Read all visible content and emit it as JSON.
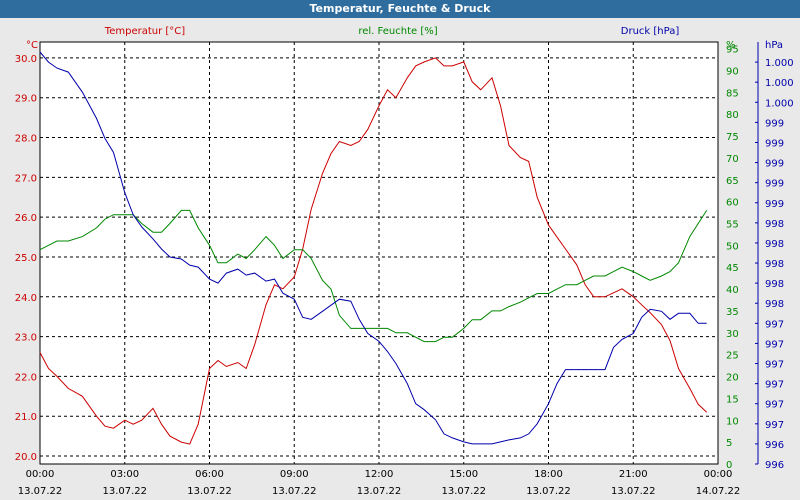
{
  "window": {
    "title": "Temperatur, Feuchte & Druck"
  },
  "chart_data": {
    "type": "line",
    "title": "Temperatur, Feuchte & Druck",
    "x_ticks": [
      {
        "t": 0,
        "time": "00:00",
        "date": "13.07.22"
      },
      {
        "t": 3,
        "time": "03:00",
        "date": "13.07.22"
      },
      {
        "t": 6,
        "time": "06:00",
        "date": "13.07.22"
      },
      {
        "t": 9,
        "time": "09:00",
        "date": "13.07.22"
      },
      {
        "t": 12,
        "time": "12:00",
        "date": "13.07.22"
      },
      {
        "t": 15,
        "time": "15:00",
        "date": "13.07.22"
      },
      {
        "t": 18,
        "time": "18:00",
        "date": "13.07.22"
      },
      {
        "t": 21,
        "time": "21:00",
        "date": "13.07.22"
      },
      {
        "t": 24,
        "time": "00:00",
        "date": "14.07.22"
      }
    ],
    "xlim": [
      0,
      24
    ],
    "grid": true,
    "axes": {
      "temperature": {
        "label": "Temperatur [°C]",
        "unit": "°C",
        "color": "#cc0000",
        "lim": [
          19.8,
          30.4
        ],
        "ticks": [
          "20.0",
          "21.0",
          "22.0",
          "23.0",
          "24.0",
          "25.0",
          "26.0",
          "27.0",
          "28.0",
          "29.0",
          "30.0"
        ]
      },
      "humidity": {
        "label": "rel. Feuchte [%]",
        "unit": "%",
        "color": "#008800",
        "lim": [
          0,
          96.5
        ],
        "ticks": [
          "0",
          "5",
          "10",
          "15",
          "20",
          "25",
          "30",
          "35",
          "40",
          "45",
          "50",
          "55",
          "60",
          "65",
          "70",
          "75",
          "80",
          "85",
          "90",
          "95"
        ]
      },
      "pressure": {
        "label": "Druck [hPa]",
        "unit": "hPa",
        "color": "#0000aa",
        "lim": [
          0,
          21
        ],
        "ticks": [
          "996",
          "996",
          "997",
          "997",
          "997",
          "997",
          "997",
          "997",
          "998",
          "998",
          "998",
          "998",
          "998",
          "999",
          "999",
          "999",
          "999",
          "999",
          "1.000",
          "1.000",
          "1.000"
        ]
      }
    },
    "series": [
      {
        "name": "Temperatur [°C]",
        "axis": "temperature",
        "color": "#cc0000",
        "x": [
          0,
          0.3,
          0.6,
          1,
          1.5,
          2,
          2.3,
          2.6,
          3,
          3.3,
          3.6,
          4,
          4.3,
          4.6,
          5,
          5.3,
          5.6,
          6,
          6.3,
          6.6,
          7,
          7.3,
          7.6,
          8,
          8.3,
          8.6,
          9,
          9.3,
          9.6,
          10,
          10.3,
          10.6,
          11,
          11.3,
          11.6,
          12,
          12.3,
          12.6,
          13,
          13.3,
          13.6,
          14,
          14.3,
          14.6,
          15,
          15.3,
          15.6,
          16,
          16.3,
          16.6,
          17,
          17.3,
          17.6,
          18,
          18.3,
          18.6,
          19,
          19.3,
          19.6,
          20,
          20.3,
          20.6,
          21,
          21.3,
          21.6,
          22,
          22.3,
          22.6,
          23,
          23.3,
          23.6
        ],
        "y": [
          22.6,
          22.2,
          22.0,
          21.7,
          21.5,
          21.0,
          20.75,
          20.7,
          20.9,
          20.8,
          20.9,
          21.2,
          20.8,
          20.5,
          20.35,
          20.3,
          20.8,
          22.2,
          22.4,
          22.25,
          22.35,
          22.2,
          22.8,
          23.8,
          24.3,
          24.2,
          24.5,
          25.2,
          26.2,
          27.1,
          27.6,
          27.9,
          27.8,
          27.9,
          28.2,
          28.8,
          29.2,
          29.0,
          29.5,
          29.8,
          29.9,
          30.0,
          29.8,
          29.8,
          29.9,
          29.4,
          29.2,
          29.5,
          28.8,
          27.8,
          27.5,
          27.4,
          26.5,
          25.8,
          25.5,
          25.2,
          24.8,
          24.3,
          24.0,
          24.0,
          24.1,
          24.2,
          24.0,
          23.8,
          23.6,
          23.3,
          22.9,
          22.2,
          21.7,
          21.3,
          21.1
        ]
      },
      {
        "name": "rel. Feuchte [%]",
        "axis": "humidity",
        "color": "#008800",
        "x": [
          0,
          0.3,
          0.6,
          1,
          1.5,
          2,
          2.3,
          2.6,
          3,
          3.3,
          3.6,
          4,
          4.3,
          4.6,
          5,
          5.3,
          5.6,
          6,
          6.3,
          6.6,
          7,
          7.3,
          7.6,
          8,
          8.3,
          8.6,
          9,
          9.3,
          9.6,
          10,
          10.3,
          10.6,
          11,
          11.3,
          11.6,
          12,
          12.3,
          12.6,
          13,
          13.3,
          13.6,
          14,
          14.3,
          14.6,
          15,
          15.3,
          15.6,
          16,
          16.3,
          16.6,
          17,
          17.3,
          17.6,
          18,
          18.3,
          18.6,
          19,
          19.3,
          19.6,
          20,
          20.3,
          20.6,
          21,
          21.3,
          21.6,
          22,
          22.3,
          22.6,
          23,
          23.3,
          23.6
        ],
        "y": [
          49,
          50,
          51,
          51,
          52,
          54,
          56,
          57,
          57,
          57,
          55,
          53,
          53,
          55,
          58,
          58,
          54,
          50,
          46,
          46,
          48,
          47,
          49,
          52,
          50,
          47,
          49,
          49,
          47,
          42,
          40,
          34,
          31,
          31,
          31,
          31,
          31,
          30,
          30,
          29,
          28,
          28,
          29,
          29,
          31,
          33,
          33,
          35,
          35,
          36,
          37,
          38,
          39,
          39,
          40,
          41,
          41,
          42,
          43,
          43,
          44,
          45,
          44,
          43,
          42,
          43,
          44,
          46,
          52,
          55,
          58
        ]
      },
      {
        "name": "Druck [hPa]",
        "axis": "pressure",
        "color": "#0000aa",
        "x": [
          0,
          0.3,
          0.6,
          1,
          1.5,
          2,
          2.3,
          2.6,
          3,
          3.3,
          3.6,
          4,
          4.3,
          4.6,
          5,
          5.3,
          5.6,
          6,
          6.3,
          6.6,
          7,
          7.3,
          7.6,
          8,
          8.3,
          8.6,
          9,
          9.3,
          9.6,
          10,
          10.3,
          10.6,
          11,
          11.3,
          11.6,
          12,
          12.3,
          12.6,
          13,
          13.3,
          13.6,
          14,
          14.3,
          14.6,
          15,
          15.3,
          15.6,
          16,
          16.3,
          16.6,
          17,
          17.3,
          17.6,
          18,
          18.3,
          18.6,
          19,
          19.3,
          19.6,
          20,
          20.3,
          20.6,
          21,
          21.3,
          21.6,
          22,
          22.3,
          22.6,
          23,
          23.3,
          23.6
        ],
        "y": [
          20.5,
          20,
          19.7,
          19.5,
          18.5,
          17.2,
          16.2,
          15.5,
          13.5,
          12.4,
          11.8,
          11.2,
          10.7,
          10.3,
          10.2,
          9.9,
          9.8,
          9.2,
          9.0,
          9.5,
          9.7,
          9.4,
          9.5,
          9.1,
          9.2,
          8.5,
          8.2,
          7.3,
          7.2,
          7.6,
          7.9,
          8.2,
          8.1,
          7.2,
          6.5,
          6.1,
          5.6,
          5.0,
          4.0,
          3.0,
          2.7,
          2.2,
          1.5,
          1.3,
          1.1,
          1.0,
          1.0,
          1.0,
          1.1,
          1.2,
          1.3,
          1.5,
          2.0,
          3.0,
          4.0,
          4.7,
          4.7,
          4.7,
          4.7,
          4.7,
          5.8,
          6.2,
          6.5,
          7.3,
          7.7,
          7.6,
          7.2,
          7.5,
          7.5,
          7.0,
          7.0
        ]
      }
    ]
  }
}
